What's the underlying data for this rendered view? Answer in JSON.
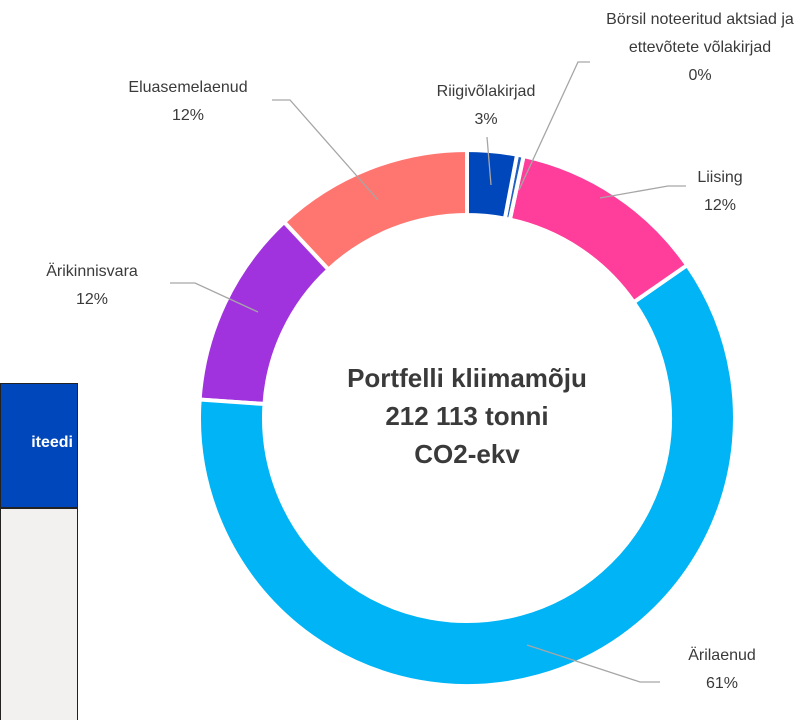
{
  "chart_data": {
    "type": "donut",
    "categories": [
      "Riigivõlakirjad",
      "Börsil noteeritud aktsiad ja ettevõtete võlakirjad",
      "Liising",
      "Ärilaenud",
      "Ärikinnisvara",
      "Eluasemelaenud"
    ],
    "values": [
      3,
      0.4,
      12,
      61,
      12,
      12
    ],
    "value_labels": [
      "3%",
      "0%",
      "12%",
      "61%",
      "12%",
      "12%"
    ],
    "colors": [
      "#0047bb",
      "#1f5fbf",
      "#ff3d9a",
      "#00b4f5",
      "#a033dd",
      "#ff7670"
    ],
    "center_text": [
      "Portfelli kliimamõju",
      "212 113 tonni",
      "CO2-ekv"
    ]
  },
  "table": {
    "header": "iteedi"
  }
}
